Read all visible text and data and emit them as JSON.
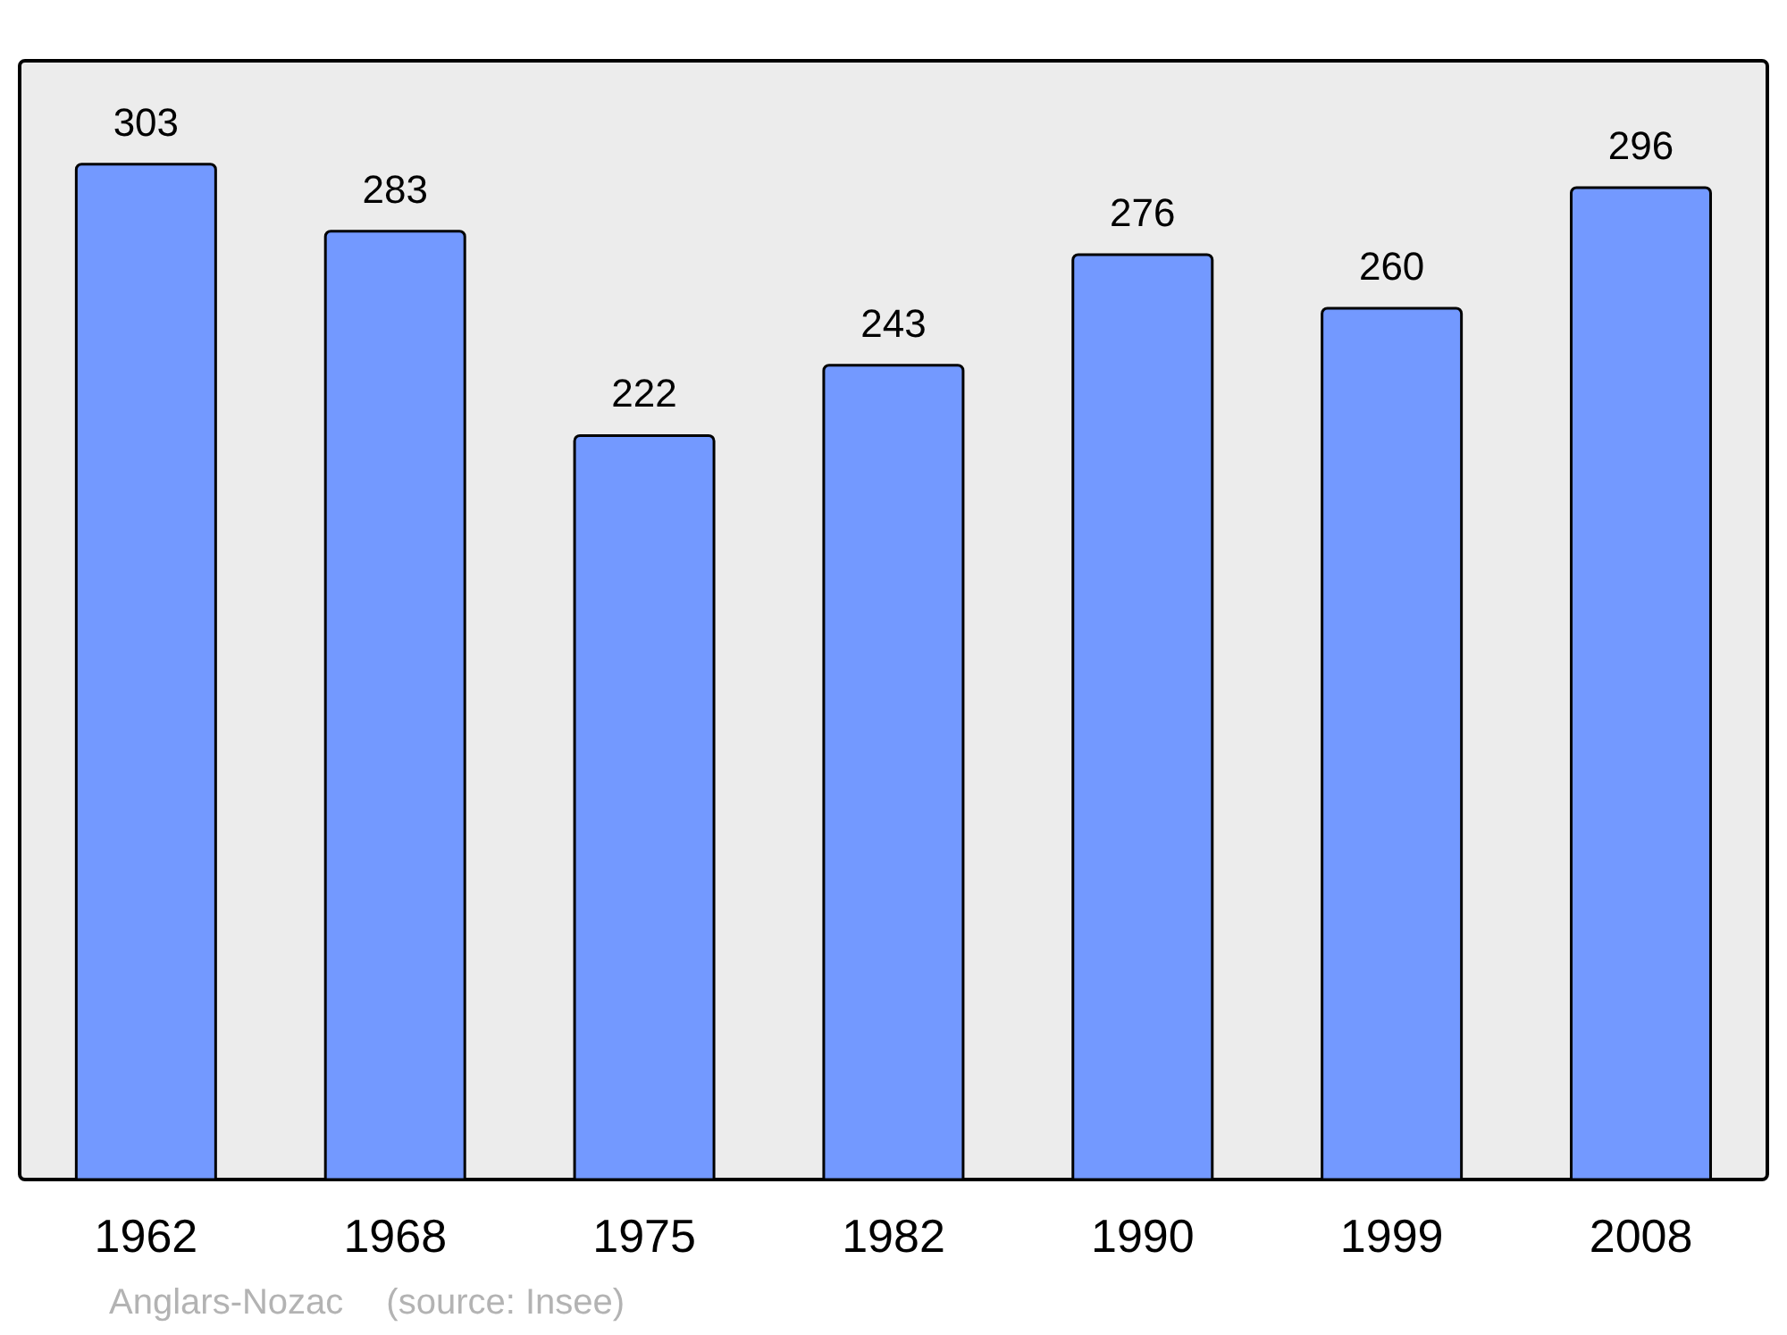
{
  "chart_data": {
    "type": "bar",
    "categories": [
      "1962",
      "1968",
      "1975",
      "1982",
      "1990",
      "1999",
      "2008"
    ],
    "values": [
      303,
      283,
      222,
      243,
      276,
      260,
      296
    ],
    "color": "#7399ff",
    "data_labels": true,
    "annotations": [
      "Anglars-Nozac",
      "(source: Insee)"
    ]
  }
}
